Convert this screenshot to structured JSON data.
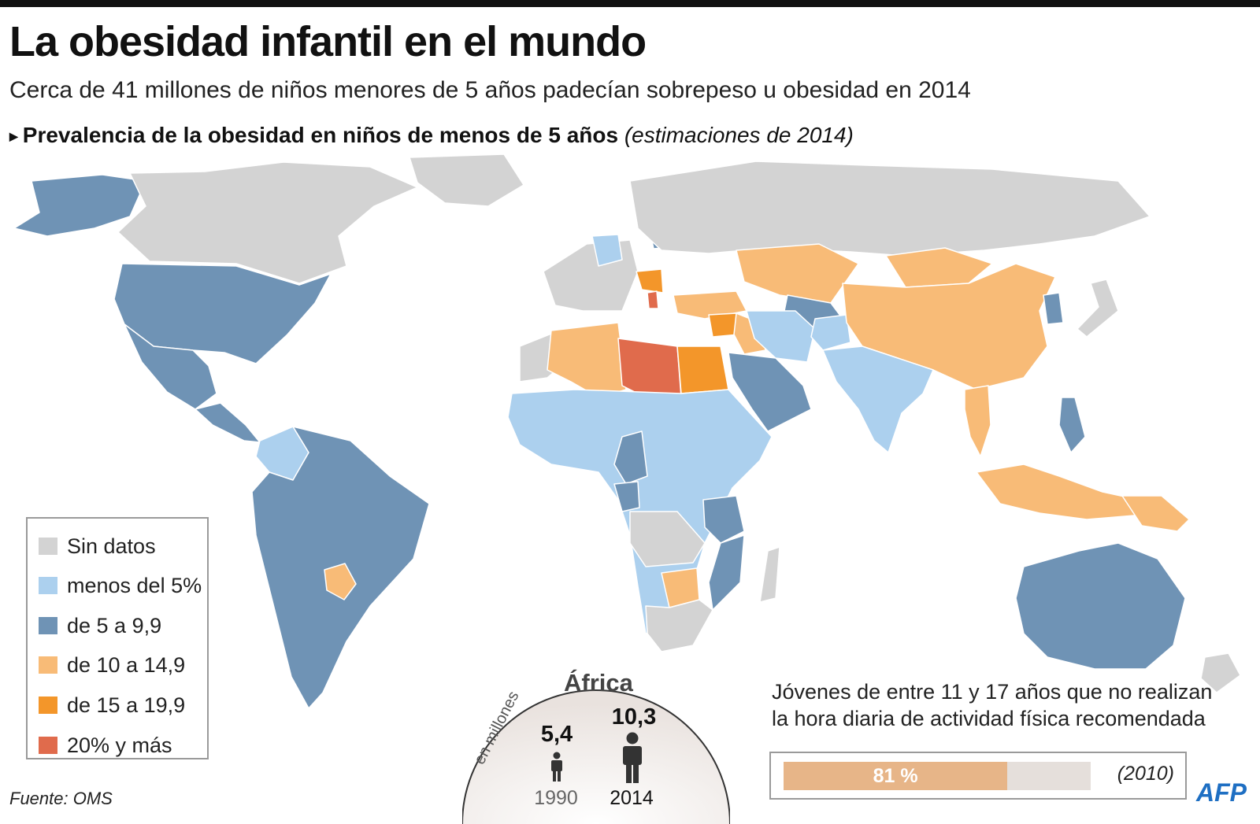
{
  "header": {
    "title": "La obesidad infantil en el mundo",
    "subtitle": "Cerca de 41 millones de niños menores de 5 años padecían sobrepeso u obesidad en 2014",
    "section_title": "Prevalencia de la obesidad en niños de menos de 5 años",
    "section_note": "(estimaciones de 2014)",
    "section_arrow_icon": "triangle-right-icon"
  },
  "legend": {
    "items": [
      {
        "label": "Sin datos",
        "color": "#d3d3d3"
      },
      {
        "label": "menos del 5%",
        "color": "#acd0ee"
      },
      {
        "label": "de 5 a 9,9",
        "color": "#6f93b5"
      },
      {
        "label": "de 10 a 14,9",
        "color": "#f8bb77"
      },
      {
        "label": "de 15 a 19,9",
        "color": "#f3962a"
      },
      {
        "label": "20% y más",
        "color": "#e06b4c"
      }
    ]
  },
  "map": {
    "regions": [
      {
        "name": "Alaska",
        "category": 2
      },
      {
        "name": "Canadá",
        "category": 0
      },
      {
        "name": "Groenlandia",
        "category": 0
      },
      {
        "name": "Estados Unidos",
        "category": 2
      },
      {
        "name": "México",
        "category": 2
      },
      {
        "name": "Centroamérica",
        "category": 2
      },
      {
        "name": "Colombia",
        "category": 1
      },
      {
        "name": "Sudamérica",
        "category": 2
      },
      {
        "name": "Paraguay",
        "category": 3
      },
      {
        "name": "Europa occidental",
        "category": 0
      },
      {
        "name": "Alemania",
        "category": 1
      },
      {
        "name": "Bielorrusia",
        "category": 2
      },
      {
        "name": "Balcanes",
        "category": 4
      },
      {
        "name": "Albania",
        "category": 5
      },
      {
        "name": "Turquía",
        "category": 3
      },
      {
        "name": "Siria",
        "category": 4
      },
      {
        "name": "Irak",
        "category": 3
      },
      {
        "name": "Rusia",
        "category": 0
      },
      {
        "name": "Kazajistán",
        "category": 3
      },
      {
        "name": "Mongolia",
        "category": 3
      },
      {
        "name": "China",
        "category": 2
      },
      {
        "name": "Corea",
        "category": 1
      },
      {
        "name": "Japón",
        "category": 1
      },
      {
        "name": "Asia central",
        "category": 3
      },
      {
        "name": "Afganistán",
        "category": 2
      },
      {
        "name": "Irán",
        "category": 0
      },
      {
        "name": "Arabia Saudita",
        "category": 2
      },
      {
        "name": "India y sur de Asia",
        "category": 1
      },
      {
        "name": "Tailandia",
        "category": 3
      },
      {
        "name": "Filipinas",
        "category": 2
      },
      {
        "name": "Indonesia",
        "category": 3
      },
      {
        "name": "Papúa Nueva Guinea",
        "category": 3
      },
      {
        "name": "Australia",
        "category": 2
      },
      {
        "name": "Nueva Zelanda",
        "category": 0
      },
      {
        "name": "Marruecos",
        "category": 0
      },
      {
        "name": "Argelia",
        "category": 3
      },
      {
        "name": "Libia",
        "category": 5
      },
      {
        "name": "Egipto",
        "category": 4
      },
      {
        "name": "África subsahariana",
        "category": 1
      },
      {
        "name": "Camerún",
        "category": 2
      },
      {
        "name": "Gabón y Congo",
        "category": 2
      },
      {
        "name": "Tanzania",
        "category": 2
      },
      {
        "name": "Mozambique",
        "category": 2
      },
      {
        "name": "Angola y Zambia",
        "category": 0
      },
      {
        "name": "Botsuana",
        "category": 3
      },
      {
        "name": "Sudáfrica",
        "category": 0
      },
      {
        "name": "Madagascar",
        "category": 0
      }
    ]
  },
  "africa_inset": {
    "title": "África",
    "unit": "en millones",
    "items": [
      {
        "year": "1990",
        "value": "5,4"
      },
      {
        "year": "2014",
        "value": "10,3"
      }
    ],
    "person_icon": "person-icon"
  },
  "activity": {
    "text_line1": "Jóvenes de entre 11 y 17 años que no realizan",
    "text_line2": "la hora diaria de actividad física recomendada",
    "percent": 81,
    "label": "81 %",
    "year": "(2010)",
    "bar_color": "#e7b588"
  },
  "footer": {
    "source": "Fuente: OMS",
    "logo_text": "AFP"
  }
}
